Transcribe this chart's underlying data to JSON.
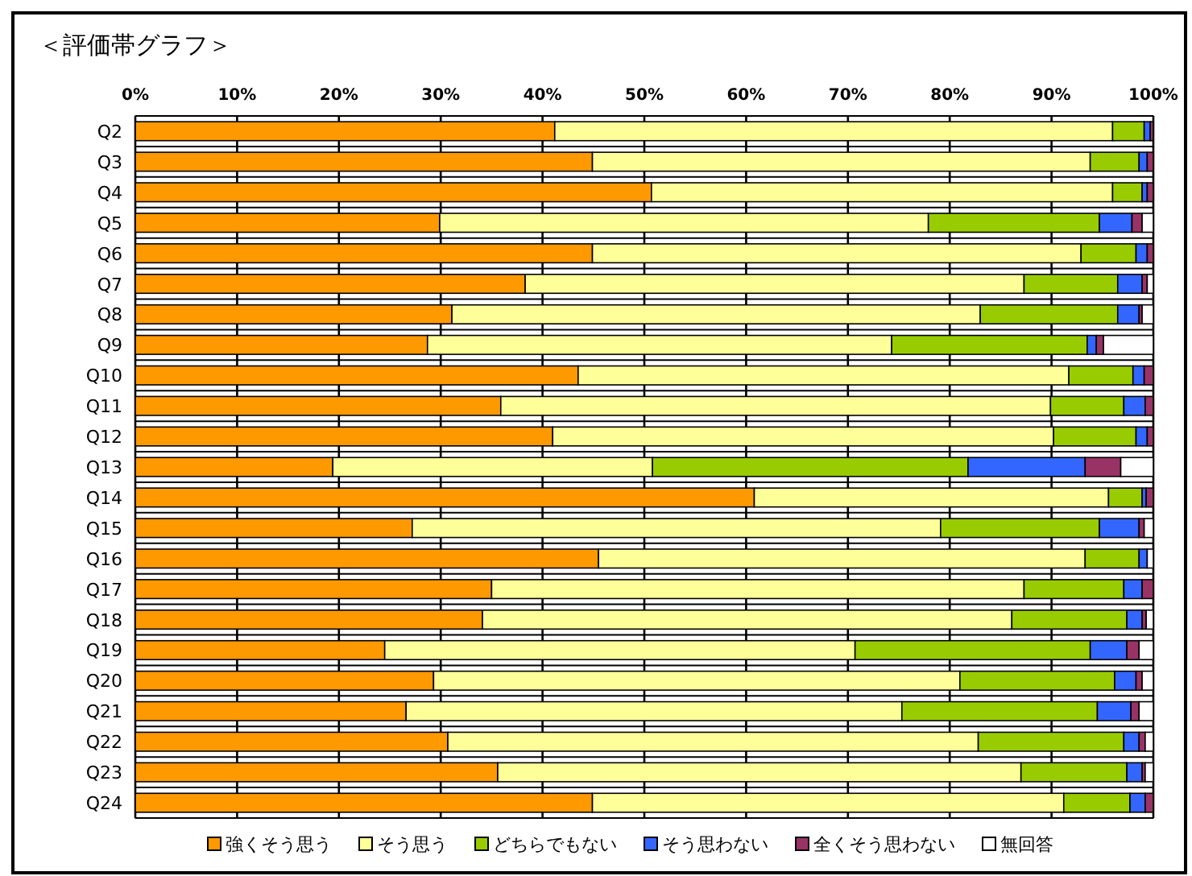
{
  "chart_data": {
    "type": "bar",
    "orientation": "horizontal",
    "stacked": true,
    "title": "＜評価帯グラフ＞",
    "categories": [
      "Q2",
      "Q3",
      "Q4",
      "Q5",
      "Q6",
      "Q7",
      "Q8",
      "Q9",
      "Q10",
      "Q11",
      "Q12",
      "Q13",
      "Q14",
      "Q15",
      "Q16",
      "Q17",
      "Q18",
      "Q19",
      "Q20",
      "Q21",
      "Q22",
      "Q23",
      "Q24"
    ],
    "xlim": [
      0,
      100
    ],
    "xticks": [
      {
        "value": 0,
        "label": "0%"
      },
      {
        "value": 10,
        "label": "10%"
      },
      {
        "value": 20,
        "label": "20%"
      },
      {
        "value": 30,
        "label": "30%"
      },
      {
        "value": 40,
        "label": "40%"
      },
      {
        "value": 50,
        "label": "50%"
      },
      {
        "value": 60,
        "label": "60%"
      },
      {
        "value": 70,
        "label": "70%"
      },
      {
        "value": 80,
        "label": "80%"
      },
      {
        "value": 90,
        "label": "90%"
      },
      {
        "value": 100,
        "label": "100%"
      }
    ],
    "grid": "x",
    "legend": "bottom",
    "series": [
      {
        "name": "強くそう思う",
        "color": "#ff9900",
        "values": [
          41.2,
          44.9,
          50.7,
          29.9,
          44.9,
          38.3,
          31.1,
          28.7,
          43.5,
          35.9,
          41.0,
          19.4,
          60.8,
          27.2,
          45.5,
          35.0,
          34.1,
          24.5,
          29.3,
          26.6,
          30.7,
          35.6,
          44.9
        ]
      },
      {
        "name": "そう思う",
        "color": "#ffff99",
        "values": [
          54.8,
          48.9,
          45.3,
          48.0,
          48.0,
          49.0,
          51.9,
          45.6,
          48.2,
          54.0,
          49.2,
          31.4,
          34.8,
          51.9,
          47.8,
          52.3,
          52.0,
          46.2,
          51.7,
          48.7,
          52.1,
          51.4,
          46.3
        ]
      },
      {
        "name": "どちらでもない",
        "color": "#99cc00",
        "values": [
          3.1,
          4.8,
          2.9,
          16.8,
          5.4,
          9.2,
          13.5,
          19.2,
          6.3,
          7.2,
          8.1,
          31.0,
          3.3,
          15.6,
          5.3,
          9.8,
          11.3,
          23.1,
          15.2,
          19.2,
          14.3,
          10.4,
          6.5
        ]
      },
      {
        "name": "そう思わない",
        "color": "#3366ff",
        "values": [
          0.6,
          0.8,
          0.5,
          3.2,
          1.1,
          2.4,
          2.1,
          0.9,
          1.1,
          2.1,
          1.1,
          11.5,
          0.4,
          3.9,
          0.8,
          1.8,
          1.5,
          3.6,
          2.1,
          3.3,
          1.5,
          1.5,
          1.5
        ]
      },
      {
        "name": "全くそう思わない",
        "color": "#993366",
        "values": [
          0.3,
          0.6,
          0.6,
          1.0,
          0.6,
          0.5,
          0.3,
          0.7,
          0.9,
          0.8,
          0.6,
          3.5,
          0.7,
          0.5,
          0,
          1.1,
          0.4,
          1.2,
          0.6,
          0.8,
          0.6,
          0.3,
          0.8
        ]
      },
      {
        "name": "無回答",
        "color": "#ffffff",
        "values": [
          0,
          0,
          0,
          1.1,
          0,
          0.6,
          1.1,
          4.9,
          0,
          0,
          0,
          3.2,
          0,
          0.9,
          0.6,
          0,
          0.7,
          1.4,
          1.1,
          1.4,
          0.8,
          0.8,
          0
        ]
      }
    ]
  }
}
